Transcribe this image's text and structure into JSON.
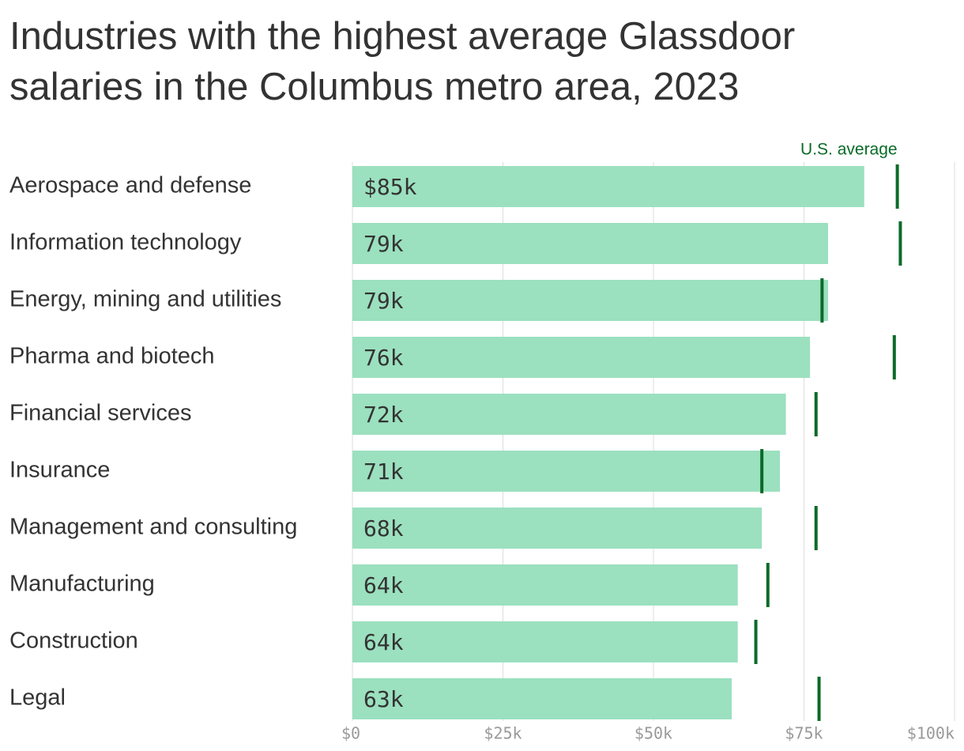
{
  "chart_data": {
    "type": "bar",
    "orientation": "horizontal",
    "title": "Industries with the highest average Glassdoor salaries in the Columbus metro area, 2023",
    "categories": [
      "Aerospace and defense",
      "Information technology",
      "Energy, mining and utilities",
      "Pharma and biotech",
      "Financial services",
      "Insurance",
      "Management and consulting",
      "Manufacturing",
      "Construction",
      "Legal"
    ],
    "series": [
      {
        "color": "#9be0bf",
        "values": [
          85,
          79,
          79,
          76,
          72,
          71,
          68,
          64,
          64,
          63
        ],
        "value_labels": [
          "$85k",
          "79k",
          "79k",
          "76k",
          "72k",
          "71k",
          "68k",
          "64k",
          "64k",
          "63k"
        ]
      },
      {
        "name": "U.S. average",
        "color": "#0a6b28",
        "marker": "tick",
        "values": [
          90.5,
          91,
          78,
          90,
          77,
          68,
          77,
          69,
          67,
          77.5
        ]
      }
    ],
    "xlim": [
      0,
      100
    ],
    "xticks": [
      {
        "value": 0,
        "label": "$0"
      },
      {
        "value": 25,
        "label": "$25k"
      },
      {
        "value": 50,
        "label": "$50k"
      },
      {
        "value": 75,
        "label": "$75k"
      },
      {
        "value": 100,
        "label": "$100k"
      }
    ],
    "grid": true
  }
}
